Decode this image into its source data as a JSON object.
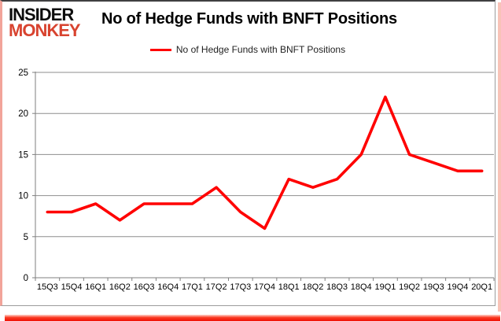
{
  "logo": {
    "line1": "INSIDER",
    "line2": "MONKEY",
    "monkey_color": "#d8432f"
  },
  "header": {
    "title": "No of Hedge Funds with BNFT Positions"
  },
  "legend": {
    "label": "No of Hedge Funds with BNFT Positions"
  },
  "chart_data": {
    "type": "line",
    "title": "No of Hedge Funds with BNFT Positions",
    "categories": [
      "15Q3",
      "15Q4",
      "16Q1",
      "16Q2",
      "16Q3",
      "16Q4",
      "17Q1",
      "17Q2",
      "17Q3",
      "17Q4",
      "18Q1",
      "18Q2",
      "18Q3",
      "18Q4",
      "19Q1",
      "19Q2",
      "19Q3",
      "19Q4",
      "20Q1"
    ],
    "series": [
      {
        "name": "No of Hedge Funds with BNFT Positions",
        "values": [
          8,
          8,
          9,
          7,
          9,
          9,
          9,
          11,
          8,
          6,
          12,
          11,
          12,
          15,
          22,
          15,
          14,
          13,
          13
        ],
        "color": "#ff0000"
      }
    ],
    "xlabel": "",
    "ylabel": "",
    "ylim": [
      0,
      25
    ],
    "yticks": [
      0,
      5,
      10,
      15,
      20,
      25
    ],
    "grid": true,
    "legend_position": "top",
    "gridline_color": "#8e8e8e",
    "axis_color": "#7f7f7f",
    "tick_label_color": "#000000"
  }
}
